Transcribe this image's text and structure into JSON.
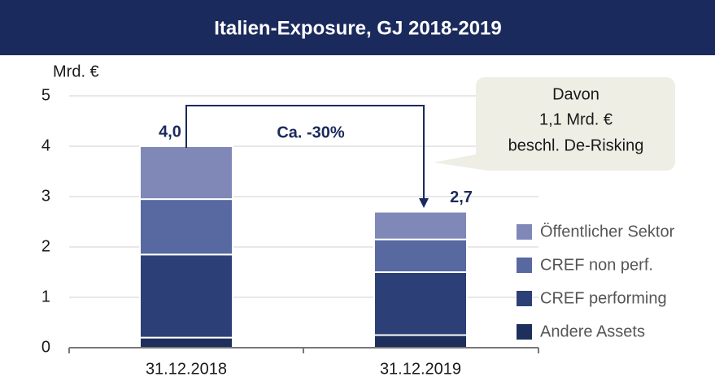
{
  "chart_data": {
    "type": "stacked_bar",
    "title": "Italien-Exposure, GJ 2018-2019",
    "y_axis_label": "Mrd. €",
    "categories": [
      "31.12.2018",
      "31.12.2019"
    ],
    "series": [
      {
        "name": "Andere Assets",
        "color": "#1e2f5c",
        "values": [
          0.2,
          0.25
        ]
      },
      {
        "name": "CREF performing",
        "color": "#2c4077",
        "values": [
          1.65,
          1.25
        ]
      },
      {
        "name": "CREF non perf.",
        "color": "#5868a0",
        "values": [
          1.1,
          0.65
        ]
      },
      {
        "name": "Öffentlicher Sektor",
        "color": "#8088b8",
        "values": [
          1.05,
          0.55
        ]
      }
    ],
    "totals": [
      4.0,
      2.7
    ],
    "total_labels": [
      "4,0",
      "2,7"
    ],
    "change_label": "Ca. -30%",
    "callout": [
      "Davon",
      "1,1 Mrd. €",
      "beschl. De-Risking"
    ],
    "ylim": [
      0,
      5
    ],
    "yticks": [
      0,
      1,
      2,
      3,
      4,
      5
    ],
    "grid": true
  }
}
